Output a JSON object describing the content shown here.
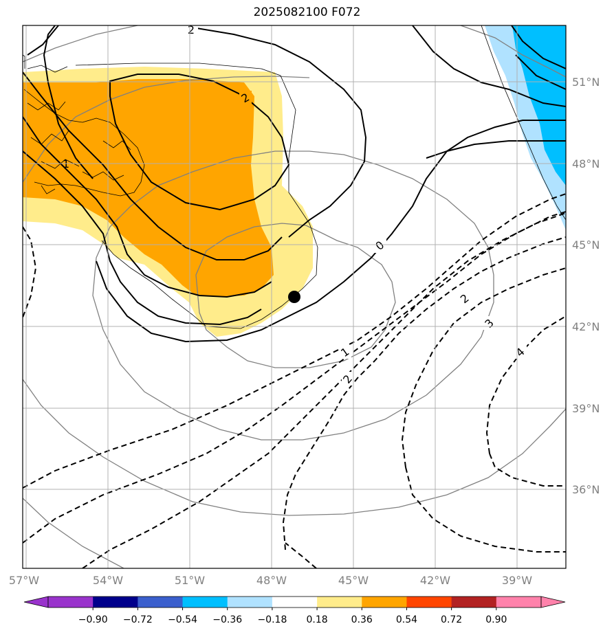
{
  "title": "2025082100 F072",
  "map": {
    "lon_ticks": [
      "57°W",
      "54°W",
      "51°W",
      "48°W",
      "45°W",
      "42°W",
      "39°W"
    ],
    "lat_ticks": [
      "51°N",
      "48°N",
      "45°N",
      "42°N",
      "39°N",
      "36°N"
    ],
    "contour_labels": {
      "solid_top": "2",
      "solid_inner": "2",
      "solid_left": "1",
      "zero": "0",
      "dash_1": "1",
      "dash_2a": "2",
      "dash_2b": "2",
      "dash_3": "3",
      "dash_4": "4"
    },
    "marker": "storm-center-dot"
  },
  "colorbar": {
    "labels": [
      "−0.90",
      "−0.72",
      "−0.54",
      "−0.36",
      "−0.18",
      "0.18",
      "0.36",
      "0.54",
      "0.72",
      "0.90"
    ],
    "colors": [
      "#9933cc",
      "#00008b",
      "#3a5fcd",
      "#00bfff",
      "#b0e2ff",
      "#ffffff",
      "#ffec8b",
      "#ffa500",
      "#ff4500",
      "#b22222",
      "#ff82ab",
      "#ff82ab"
    ]
  }
}
